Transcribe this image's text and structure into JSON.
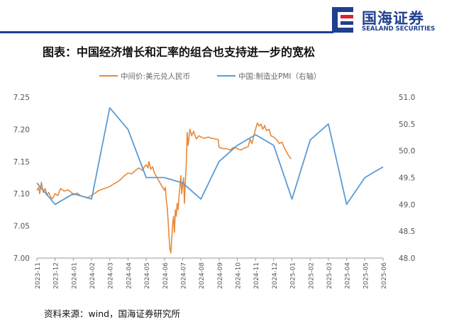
{
  "header": {
    "brand_cn": "国海证券",
    "brand_en": "SEALAND SECURITIES",
    "brand_color": "#1f3f8f",
    "logo_accent": "#d9232d"
  },
  "title": "图表：中国经济增长和汇率的组合也支持进一步的宽松",
  "source": "资料来源：wind，国海证券研究所",
  "chart_data": {
    "type": "line",
    "x_categories": [
      "2023-11",
      "2023-12",
      "2024-01",
      "2024-02",
      "2024-03",
      "2024-04",
      "2024-05",
      "2024-06",
      "2024-07",
      "2024-08",
      "2024-09",
      "2024-10",
      "2024-11",
      "2024-12",
      "2025-01",
      "2025-02",
      "2025-03",
      "2025-04",
      "2025-05",
      "2025-06"
    ],
    "y_left": {
      "ticks": [
        "7.00",
        "7.05",
        "7.10",
        "7.15",
        "7.20",
        "7.25"
      ],
      "lim": [
        7.0,
        7.25
      ]
    },
    "y_right": {
      "ticks": [
        "48.0",
        "48.5",
        "49.0",
        "49.5",
        "50.0",
        "50.5",
        "51.0"
      ],
      "lim": [
        48.0,
        51.0
      ]
    },
    "legend_position": "top",
    "grid": false,
    "series": [
      {
        "name": "中间价:美元兑人民币",
        "axis": "left",
        "color": "#e8893a",
        "points": [
          [
            0.0,
            7.105
          ],
          [
            0.1,
            7.11
          ],
          [
            0.15,
            7.1
          ],
          [
            0.25,
            7.118
          ],
          [
            0.35,
            7.102
          ],
          [
            0.45,
            7.108
          ],
          [
            0.55,
            7.098
          ],
          [
            0.65,
            7.102
          ],
          [
            0.75,
            7.095
          ],
          [
            0.85,
            7.092
          ],
          [
            1.0,
            7.1
          ],
          [
            1.15,
            7.097
          ],
          [
            1.3,
            7.108
          ],
          [
            1.5,
            7.104
          ],
          [
            1.7,
            7.106
          ],
          [
            1.9,
            7.102
          ],
          [
            2.0,
            7.098
          ],
          [
            2.2,
            7.101
          ],
          [
            2.4,
            7.097
          ],
          [
            2.6,
            7.095
          ],
          [
            2.8,
            7.094
          ],
          [
            3.0,
            7.097
          ],
          [
            3.2,
            7.101
          ],
          [
            3.4,
            7.105
          ],
          [
            3.6,
            7.107
          ],
          [
            3.8,
            7.109
          ],
          [
            4.0,
            7.111
          ],
          [
            4.2,
            7.115
          ],
          [
            4.4,
            7.118
          ],
          [
            4.6,
            7.122
          ],
          [
            4.8,
            7.128
          ],
          [
            5.0,
            7.132
          ],
          [
            5.2,
            7.131
          ],
          [
            5.4,
            7.136
          ],
          [
            5.6,
            7.14
          ],
          [
            5.8,
            7.136
          ],
          [
            5.9,
            7.142
          ],
          [
            6.0,
            7.145
          ],
          [
            6.1,
            7.14
          ],
          [
            6.15,
            7.15
          ],
          [
            6.25,
            7.138
          ],
          [
            6.35,
            7.142
          ],
          [
            6.45,
            7.132
          ],
          [
            6.6,
            7.125
          ],
          [
            6.75,
            7.117
          ],
          [
            6.9,
            7.11
          ],
          [
            7.0,
            7.105
          ],
          [
            7.05,
            7.11
          ],
          [
            7.1,
            7.09
          ],
          [
            7.15,
            7.08
          ],
          [
            7.2,
            7.06
          ],
          [
            7.25,
            7.035
          ],
          [
            7.3,
            7.015
          ],
          [
            7.35,
            7.008
          ],
          [
            7.45,
            7.05
          ],
          [
            7.5,
            7.065
          ],
          [
            7.55,
            7.04
          ],
          [
            7.6,
            7.075
          ],
          [
            7.65,
            7.065
          ],
          [
            7.7,
            7.085
          ],
          [
            7.75,
            7.075
          ],
          [
            7.8,
            7.095
          ],
          [
            7.85,
            7.11
          ],
          [
            7.9,
            7.128
          ],
          [
            7.95,
            7.1
          ],
          [
            8.0,
            7.115
          ],
          [
            8.05,
            7.125
          ],
          [
            8.1,
            7.085
          ],
          [
            8.15,
            7.12
          ],
          [
            8.2,
            7.145
          ],
          [
            8.25,
            7.195
          ],
          [
            8.3,
            7.175
          ],
          [
            8.4,
            7.2
          ],
          [
            8.5,
            7.19
          ],
          [
            8.6,
            7.197
          ],
          [
            8.75,
            7.185
          ],
          [
            8.9,
            7.19
          ],
          [
            9.0,
            7.188
          ],
          [
            9.2,
            7.186
          ],
          [
            9.4,
            7.188
          ],
          [
            9.6,
            7.186
          ],
          [
            9.8,
            7.185
          ],
          [
            9.95,
            7.184
          ],
          [
            10.0,
            7.172
          ],
          [
            10.2,
            7.17
          ],
          [
            10.4,
            7.17
          ],
          [
            10.6,
            7.168
          ],
          [
            10.8,
            7.172
          ],
          [
            11.0,
            7.17
          ],
          [
            11.2,
            7.168
          ],
          [
            11.4,
            7.171
          ],
          [
            11.6,
            7.173
          ],
          [
            11.7,
            7.185
          ],
          [
            11.8,
            7.178
          ],
          [
            12.0,
            7.2
          ],
          [
            12.1,
            7.21
          ],
          [
            12.2,
            7.205
          ],
          [
            12.3,
            7.208
          ],
          [
            12.4,
            7.2
          ],
          [
            12.5,
            7.206
          ],
          [
            12.6,
            7.198
          ],
          [
            12.75,
            7.2
          ],
          [
            12.85,
            7.19
          ],
          [
            13.0,
            7.188
          ],
          [
            13.15,
            7.184
          ],
          [
            13.3,
            7.178
          ],
          [
            13.45,
            7.18
          ],
          [
            13.6,
            7.17
          ],
          [
            13.8,
            7.16
          ],
          [
            13.95,
            7.154
          ]
        ]
      },
      {
        "name": "中国:制造业PMI（右轴）",
        "axis": "right",
        "color": "#5b9bd5",
        "points": [
          [
            0.0,
            49.4
          ],
          [
            1.0,
            49.0
          ],
          [
            2.0,
            49.2
          ],
          [
            3.0,
            49.1
          ],
          [
            4.0,
            50.8
          ],
          [
            5.0,
            50.4
          ],
          [
            6.0,
            49.5
          ],
          [
            7.0,
            49.5
          ],
          [
            8.0,
            49.4
          ],
          [
            9.0,
            49.1
          ],
          [
            10.0,
            49.8
          ],
          [
            11.0,
            50.1
          ],
          [
            12.0,
            50.3
          ],
          [
            13.0,
            50.1
          ],
          [
            14.0,
            49.1
          ],
          [
            15.0,
            50.2
          ],
          [
            16.0,
            50.5
          ],
          [
            17.0,
            49.0
          ],
          [
            18.0,
            49.5
          ],
          [
            19.0,
            49.7
          ]
        ]
      }
    ]
  }
}
